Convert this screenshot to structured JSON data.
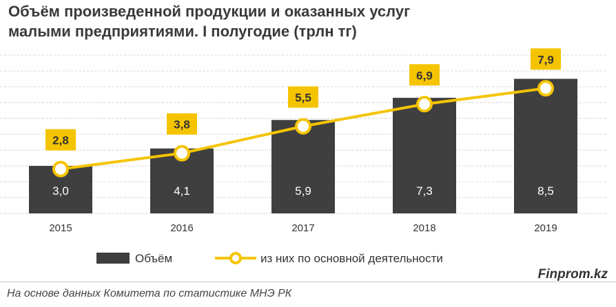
{
  "chart_data": {
    "type": "bar",
    "title_lines": [
      "Объём произведенной продукции и оказанных услуг",
      "малыми предприятиями. I полугодие (трлн тг)"
    ],
    "categories": [
      "2015",
      "2016",
      "2017",
      "2018",
      "2019"
    ],
    "series": [
      {
        "name": "Объём",
        "type": "bar",
        "color": "#3f3f3f",
        "values": [
          3.0,
          4.1,
          5.9,
          7.3,
          8.5
        ],
        "labels": [
          "3,0",
          "4,1",
          "5,9",
          "7,3",
          "8,5"
        ]
      },
      {
        "name": "из них по основной деятельности",
        "type": "line",
        "color": "#f5c400",
        "values": [
          2.8,
          3.8,
          5.5,
          6.9,
          7.9
        ],
        "labels": [
          "2,8",
          "3,8",
          "5,5",
          "6,9",
          "7,9"
        ]
      }
    ],
    "ylim": [
      0,
      10
    ],
    "grid": true,
    "legend_position": "bottom"
  },
  "footer": {
    "source": "На основе данных  Комитета по статистике МНЭ РК",
    "brand": "Finprom.kz"
  }
}
